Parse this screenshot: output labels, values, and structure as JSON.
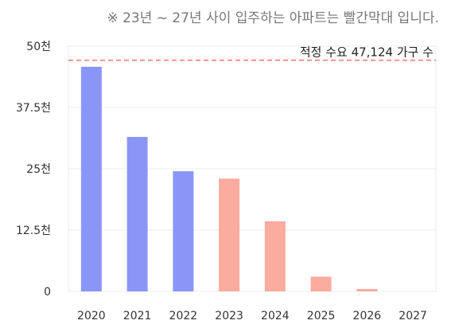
{
  "chart_data": {
    "type": "bar",
    "note": "※ 23년 ~ 27년 사이 입주하는 아파트는 빨간막대 입니다.",
    "categories": [
      "2020",
      "2021",
      "2022",
      "2023",
      "2024",
      "2025",
      "2026",
      "2027"
    ],
    "values": [
      45800,
      31500,
      24500,
      23000,
      14300,
      3000,
      500,
      0
    ],
    "highlight": [
      false,
      false,
      false,
      true,
      true,
      true,
      true,
      true
    ],
    "ylim": [
      0,
      50000
    ],
    "ytick_values": [
      0,
      12500,
      25000,
      37500,
      50000
    ],
    "ytick_labels": [
      "0",
      "12.5천",
      "25천",
      "37.5천",
      "50천"
    ],
    "reference_line": {
      "value": 47124,
      "label": "적정 수요 47,124 가구 수"
    },
    "grid": true,
    "colors": {
      "past": "#8a96f7",
      "future": "#fcab9f",
      "reference": "#f08070",
      "grid": "#ececec"
    }
  }
}
